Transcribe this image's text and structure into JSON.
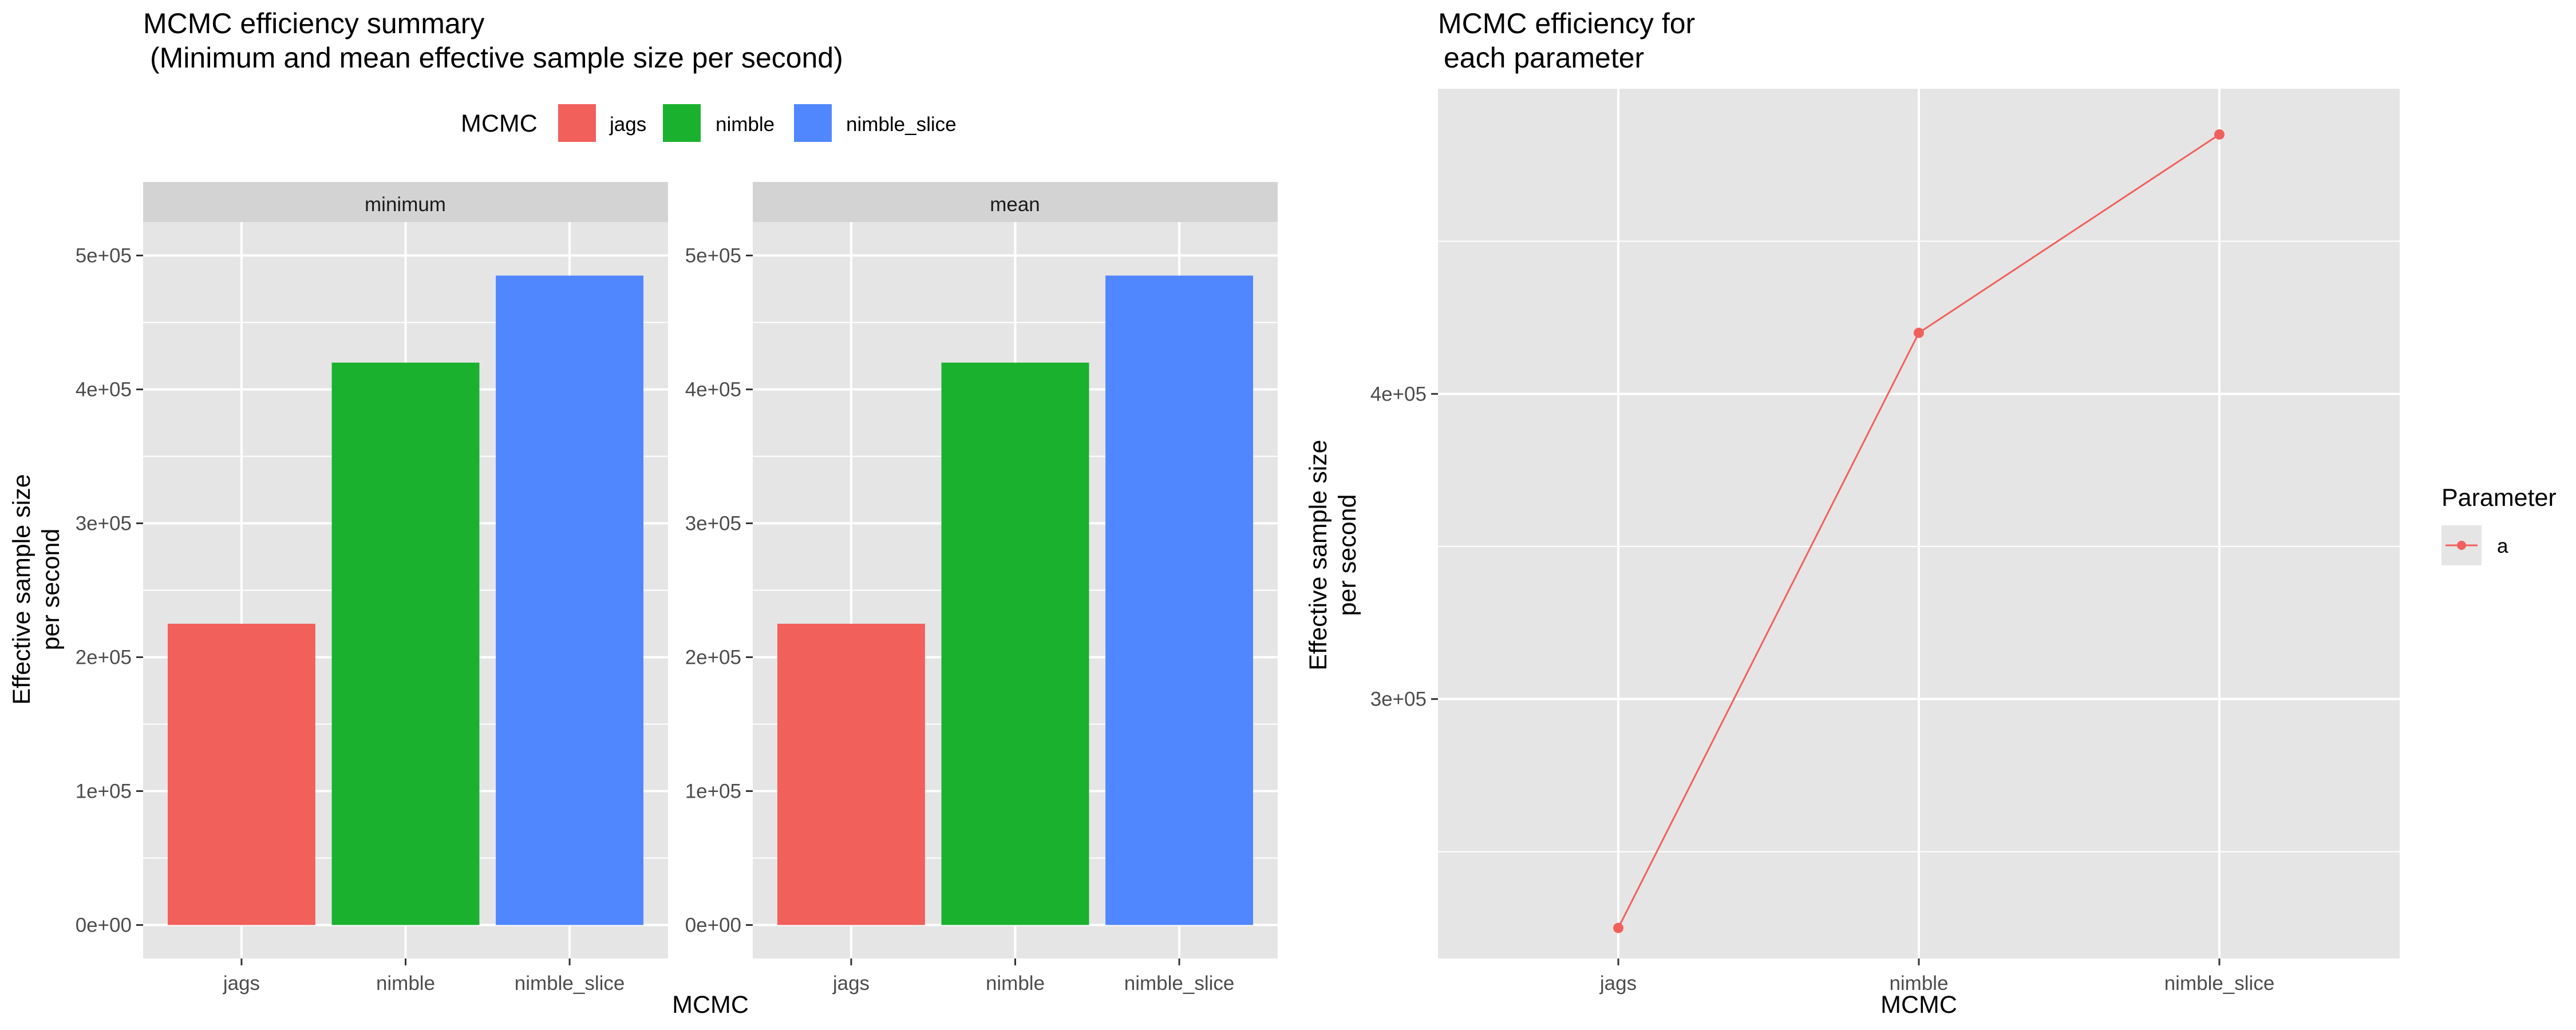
{
  "colors": {
    "jags": "#F2605C",
    "nimble": "#1AB12E",
    "nimble_slice": "#5087FE",
    "panel_bg": "#E5E5E5",
    "strip_bg": "#D3D3D3",
    "grid": "#FFFFFF",
    "text": "#000000",
    "axis_text": "#4D4D4D"
  },
  "chart_data": [
    {
      "type": "bar",
      "title": "MCMC efficiency summary",
      "subtitle": "(Minimum and mean effective sample size per second)",
      "xlabel": "MCMC",
      "ylabel_line1": "Effective sample size",
      "ylabel_line2": "per second",
      "legend": {
        "title": "MCMC",
        "position": "top",
        "entries": [
          "jags",
          "nimble",
          "nimble_slice"
        ]
      },
      "categories": [
        "jags",
        "nimble",
        "nimble_slice"
      ],
      "facets": [
        {
          "strip": "minimum",
          "values": [
            225000,
            420000,
            485000
          ]
        },
        {
          "strip": "mean",
          "values": [
            225000,
            420000,
            485000
          ]
        }
      ],
      "ylim": [
        0,
        500000
      ],
      "yticks": [
        {
          "value": 0,
          "label": "0e+00"
        },
        {
          "value": 100000,
          "label": "1e+05"
        },
        {
          "value": 200000,
          "label": "2e+05"
        },
        {
          "value": 300000,
          "label": "3e+05"
        },
        {
          "value": 400000,
          "label": "4e+05"
        },
        {
          "value": 500000,
          "label": "5e+05"
        }
      ],
      "grid": true
    },
    {
      "type": "line",
      "title_line1": "MCMC efficiency for",
      "title_line2": "each parameter",
      "xlabel": "MCMC",
      "ylabel_line1": "Effective sample size",
      "ylabel_line2": "per second",
      "categories": [
        "jags",
        "nimble",
        "nimble_slice"
      ],
      "series": [
        {
          "name": "a",
          "values": [
            225000,
            420000,
            485000
          ]
        }
      ],
      "legend": {
        "title": "Parameter",
        "position": "right"
      },
      "ylim": [
        215000,
        500000
      ],
      "yticks": [
        {
          "value": 300000,
          "label": "3e+05"
        },
        {
          "value": 400000,
          "label": "4e+05"
        }
      ],
      "grid": true
    }
  ]
}
